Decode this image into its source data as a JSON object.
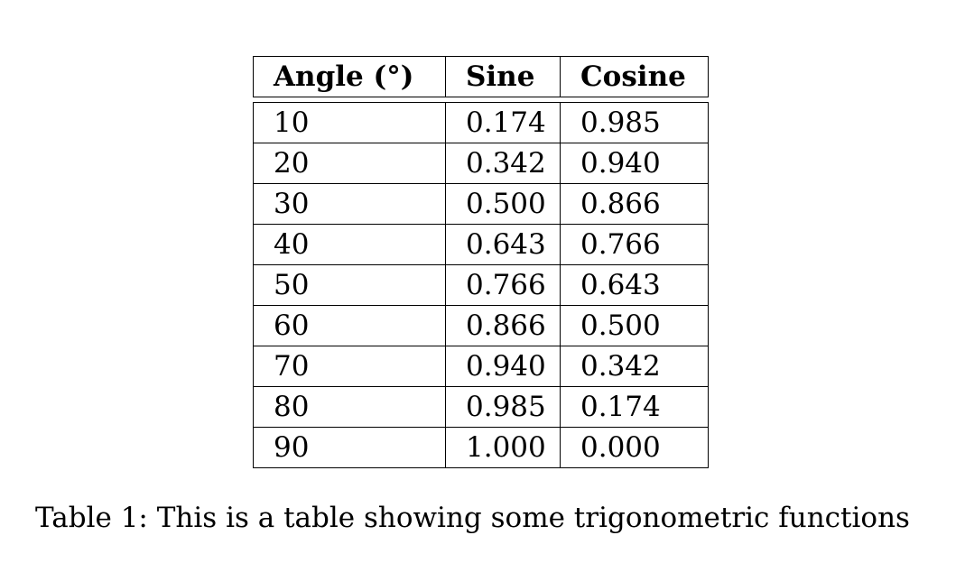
{
  "table": {
    "headers": [
      "Angle (°)",
      "Sine",
      "Cosine"
    ],
    "rows": [
      [
        "10",
        "0.174",
        "0.985"
      ],
      [
        "20",
        "0.342",
        "0.940"
      ],
      [
        "30",
        "0.500",
        "0.866"
      ],
      [
        "40",
        "0.643",
        "0.766"
      ],
      [
        "50",
        "0.766",
        "0.643"
      ],
      [
        "60",
        "0.866",
        "0.500"
      ],
      [
        "70",
        "0.940",
        "0.342"
      ],
      [
        "80",
        "0.985",
        "0.174"
      ],
      [
        "90",
        "1.000",
        "0.000"
      ]
    ]
  },
  "caption": {
    "label": "Table 1:",
    "text": "This is a table showing some trigonometric functions"
  }
}
